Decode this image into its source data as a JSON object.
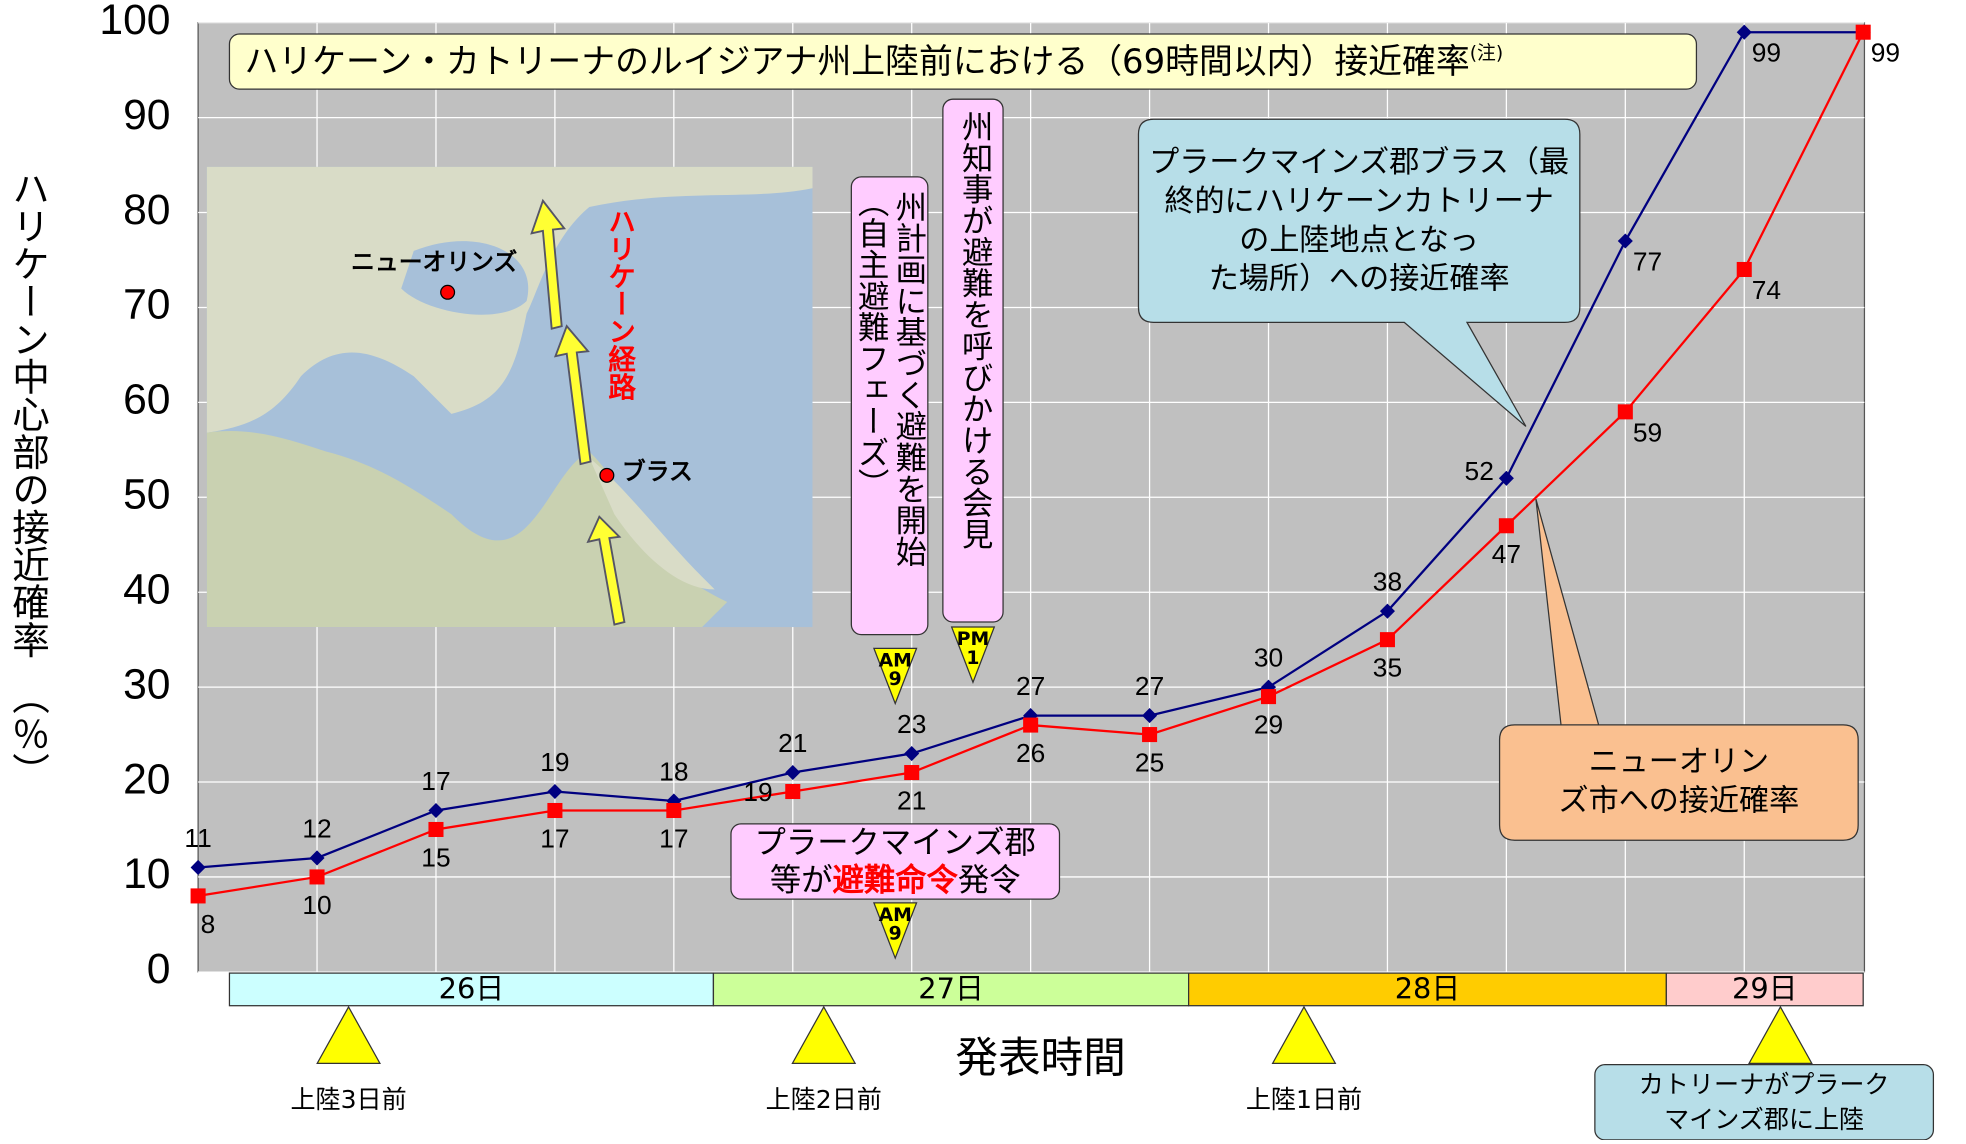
{
  "chart_data": {
    "type": "line",
    "title": "ハリケーン・カトリーナのルイジアナ州上陸前における（69時間以内）接近確率",
    "title_note": "(注)",
    "y_label": "ハリケーン中心部の接近確率　（％）",
    "x_label": "発表時間",
    "categories": [
      null,
      null,
      null,
      null,
      null,
      null,
      null,
      null,
      null,
      null,
      null,
      null,
      null,
      null,
      null
    ],
    "series": [
      {
        "name": "プラークマインズ郡ブラス（最終的にハリケーンカトリーナの上陸地点となった場所）への接近確率",
        "color": "#000080",
        "values": [
          11,
          12,
          17,
          19,
          18,
          21,
          23,
          27,
          27,
          30,
          38,
          52,
          77,
          99,
          99
        ]
      },
      {
        "name": "ニューオリンズ市への接近確率",
        "color": "#ff0000",
        "values": [
          8,
          10,
          15,
          17,
          17,
          19,
          21,
          26,
          25,
          29,
          35,
          47,
          59,
          74,
          99
        ]
      }
    ],
    "ylim": [
      0,
      100
    ],
    "yticks": [
      0,
      10,
      20,
      30,
      40,
      50,
      60,
      70,
      80,
      90,
      100
    ],
    "grid": true,
    "days": [
      "26日",
      "27日",
      "28日",
      "29日"
    ],
    "landfall_marks": [
      "上陸3日前",
      "上陸2日前",
      "上陸1日前",
      "カトリーナがプラークマインズ郡に上陸"
    ],
    "events": [
      {
        "text": "州計画に基づく避難を開始",
        "note": "（自主避難フェーズ）",
        "time": "AM",
        "hour": 9
      },
      {
        "text": "州知事が避難を呼びかける会見",
        "time": "PM",
        "hour": 1
      },
      {
        "text_1": "プラークマインズ郡",
        "text_2": "等が",
        "emphasis": "避難命令",
        "text_3": "発令",
        "time": "AM",
        "hour": 9
      }
    ],
    "map": {
      "city": "ニューオリンズ",
      "landfall": "ブラス",
      "track": "ハリケーン経路"
    }
  }
}
